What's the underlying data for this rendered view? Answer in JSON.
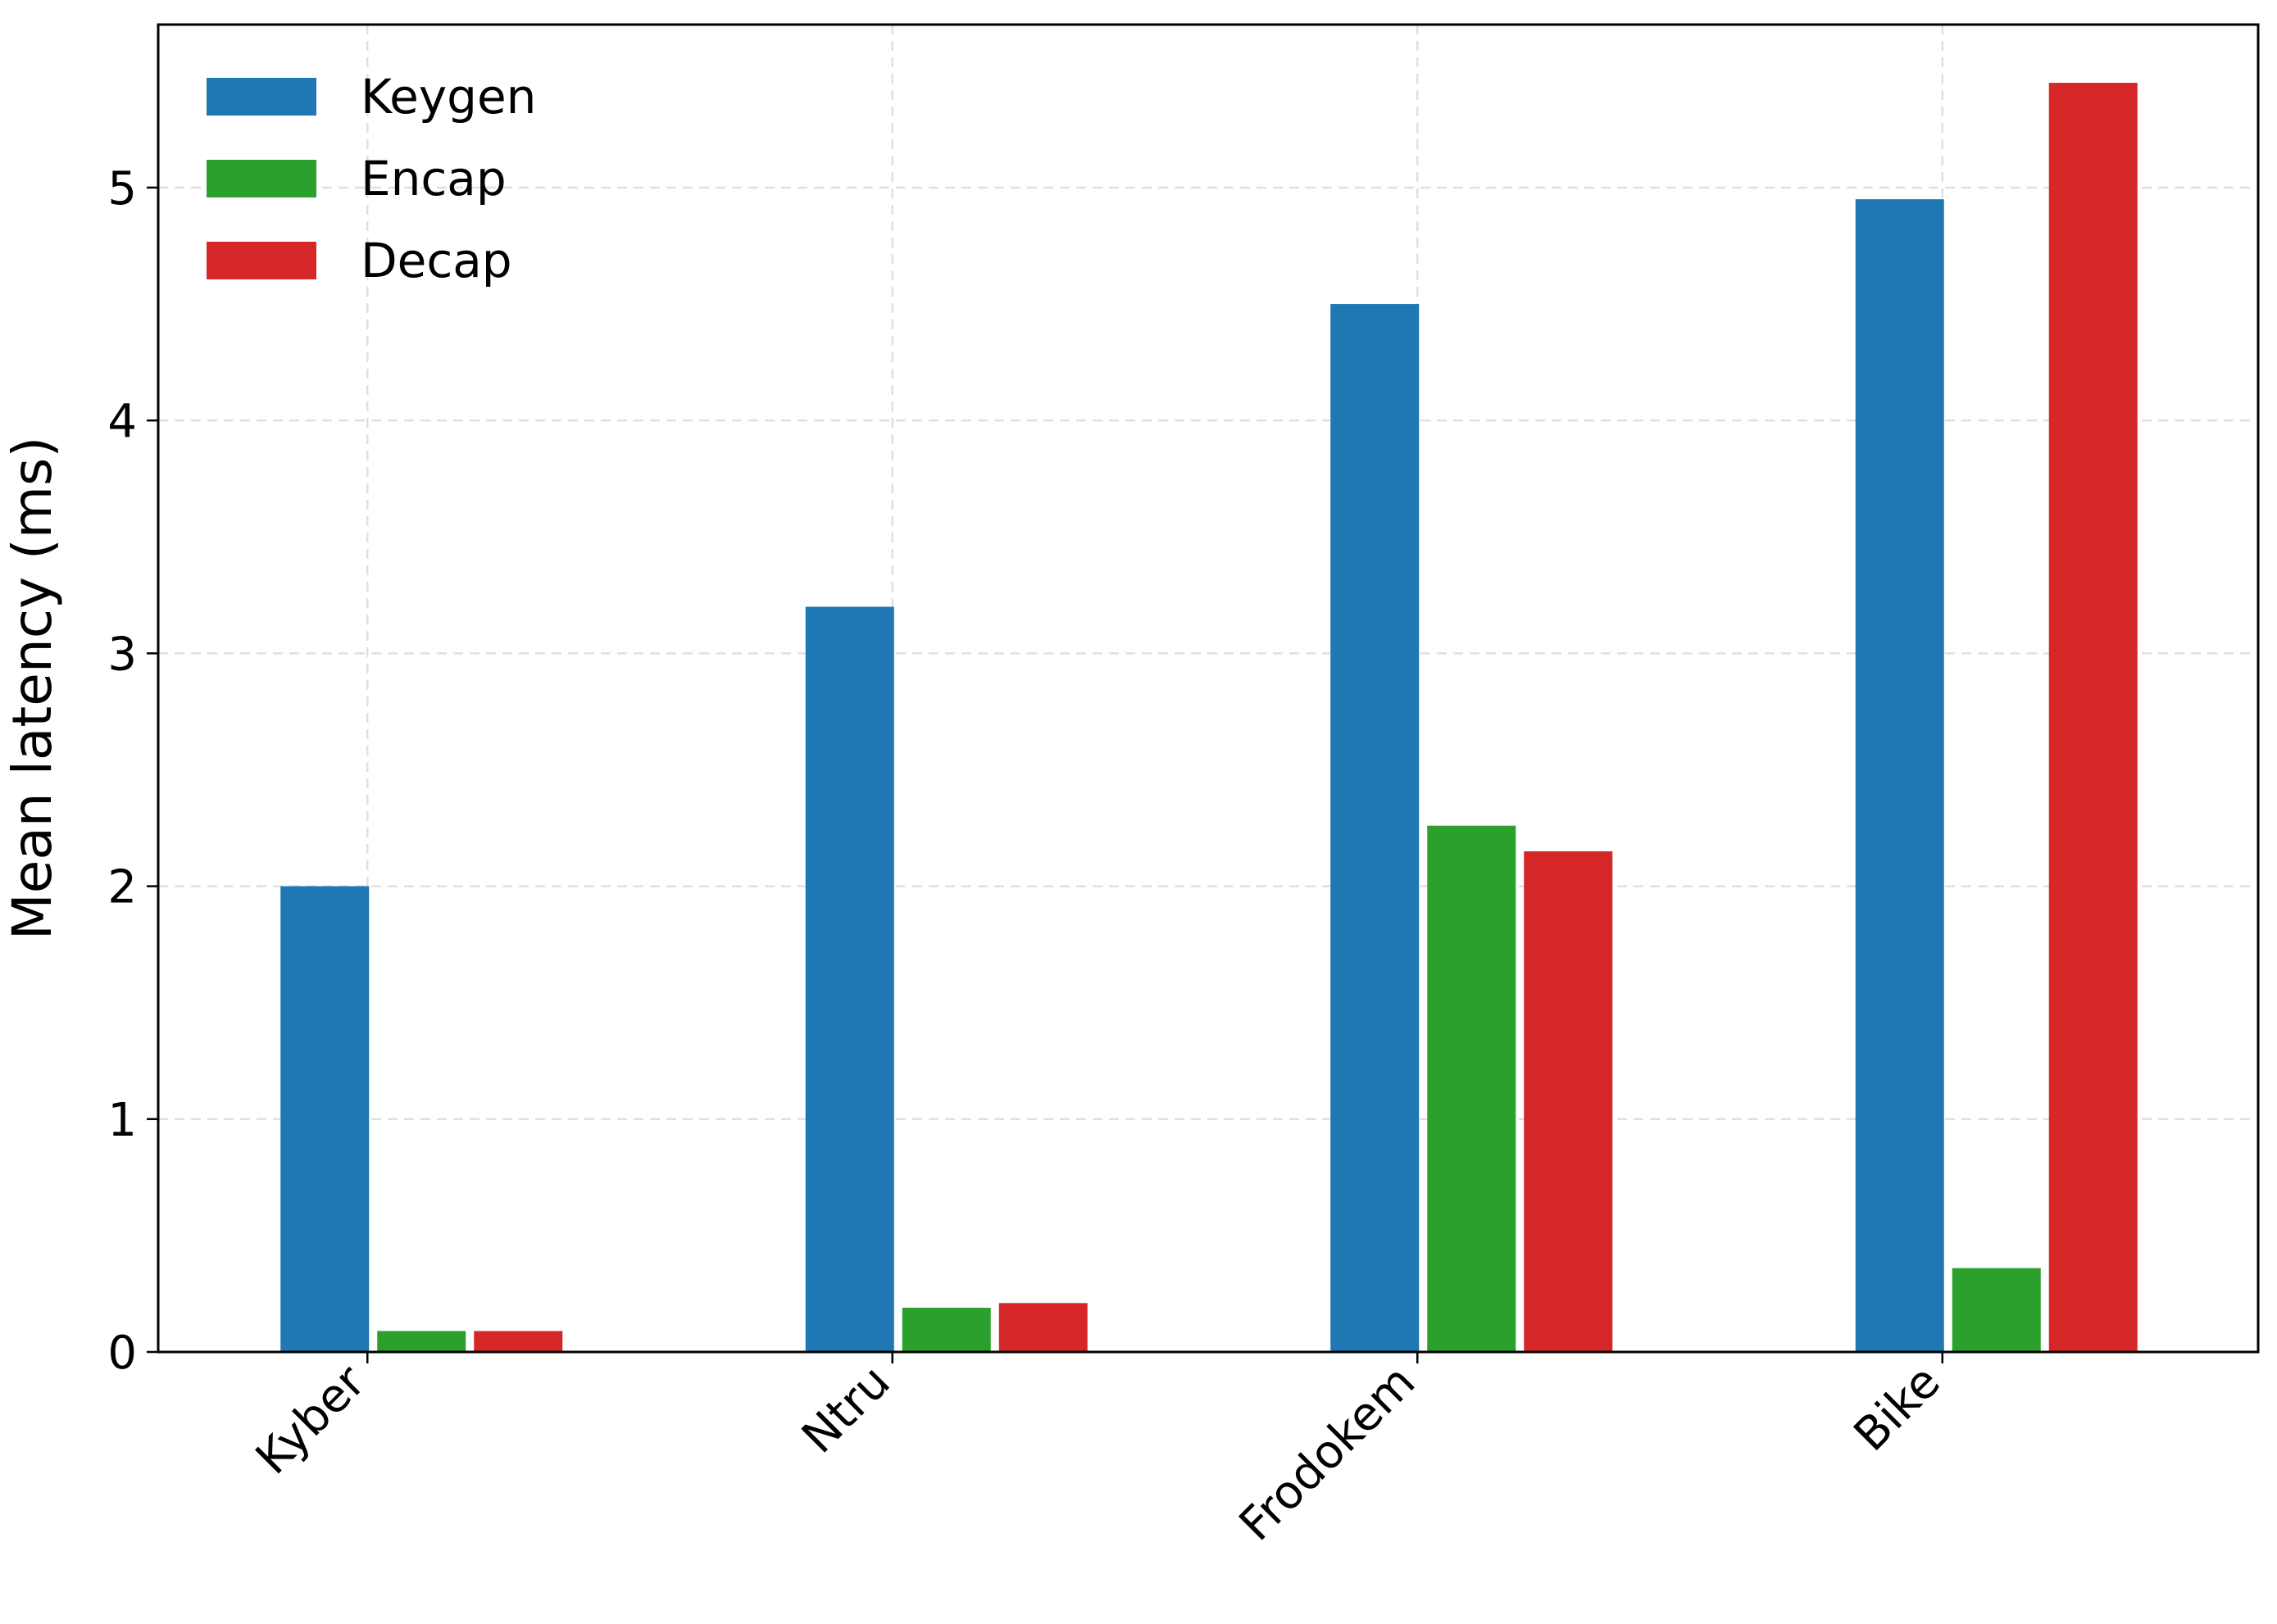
{
  "chart_data": {
    "type": "bar",
    "title": "",
    "xlabel": "",
    "ylabel": "Mean latency (ms)",
    "categories": [
      "Kyber",
      "Ntru",
      "Frodokem",
      "Bike"
    ],
    "series": [
      {
        "name": "Keygen",
        "color": "#1f77b4",
        "values": [
          2.0,
          3.2,
          4.5,
          4.95
        ]
      },
      {
        "name": "Encap",
        "color": "#2ca02c",
        "values": [
          0.09,
          0.19,
          2.26,
          0.36
        ]
      },
      {
        "name": "Decap",
        "color": "#d62728",
        "values": [
          0.09,
          0.21,
          2.15,
          5.45
        ]
      }
    ],
    "ylim": [
      0,
      5.7
    ],
    "yticks": [
      "0",
      "1",
      "2",
      "3",
      "4",
      "5"
    ],
    "grid": true,
    "legend_position": "top-left"
  }
}
